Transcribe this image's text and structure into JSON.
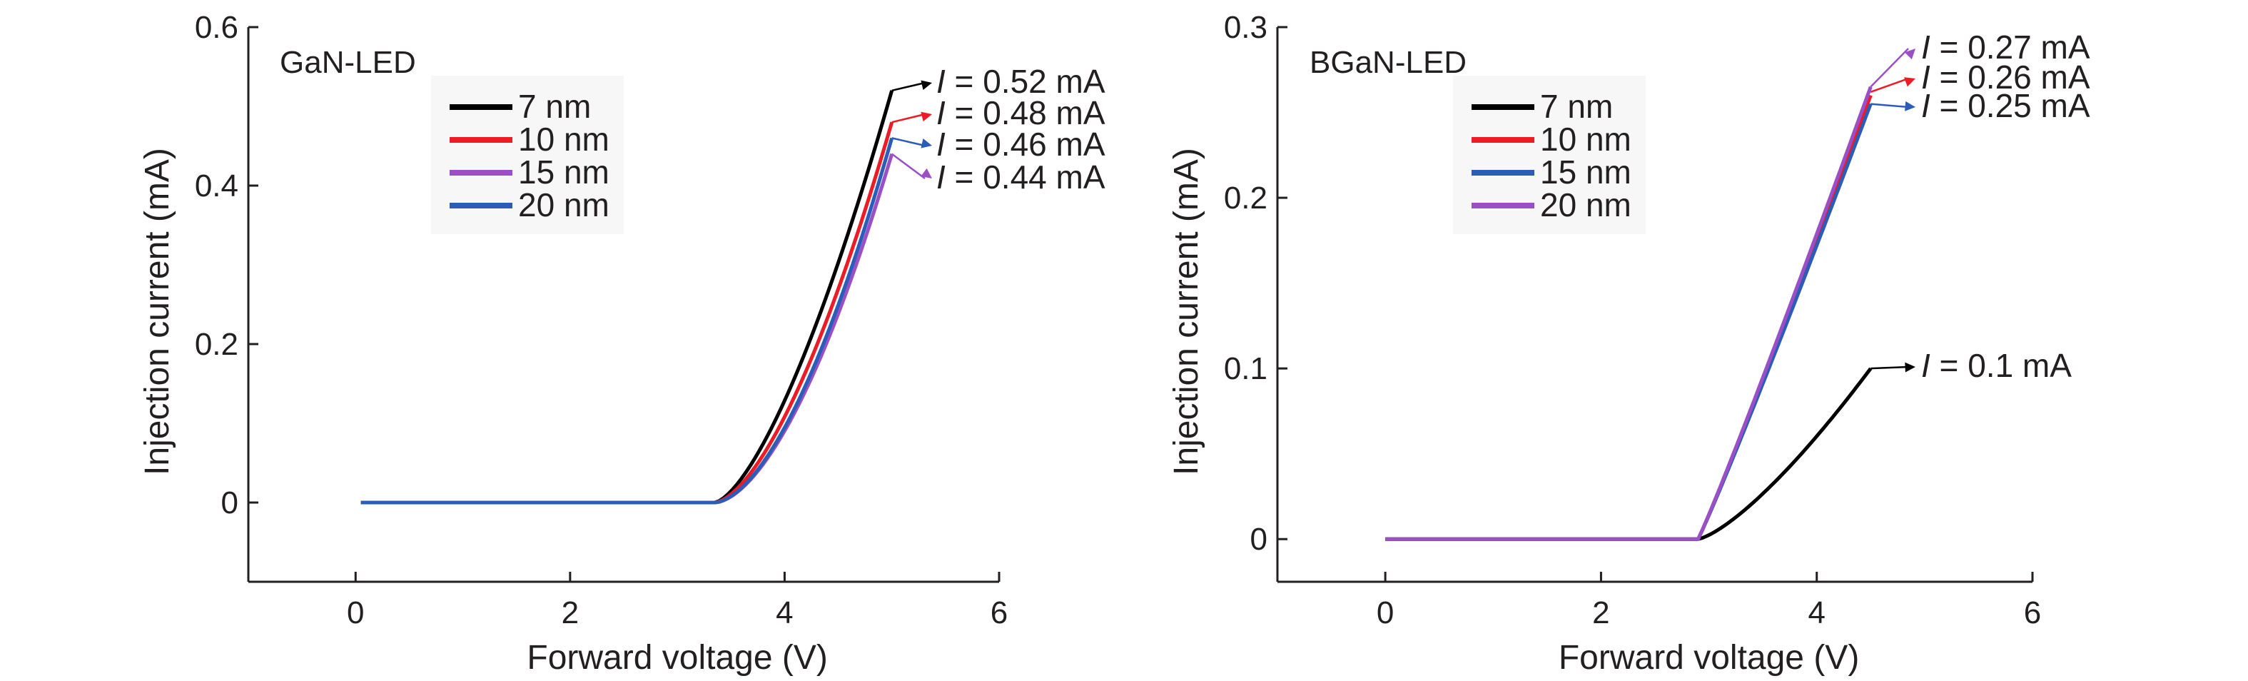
{
  "chart_data": [
    {
      "type": "line",
      "panel_label": "GaN-LED",
      "xlabel": "Forward voltage (V)",
      "ylabel": "Injection current (mA)",
      "xlim": [
        -1,
        6
      ],
      "ylim": [
        -0.1,
        0.6
      ],
      "xticks": [
        0,
        2,
        4,
        6
      ],
      "xtick_labels": [
        "0",
        "2",
        "4",
        "6"
      ],
      "yticks": [
        0,
        0.2,
        0.4,
        0.6
      ],
      "ytick_labels": [
        "0",
        "0.2",
        "0.4",
        "0.6"
      ],
      "grid": false,
      "legend_position": "upper-left",
      "series": [
        {
          "name": "7 nm",
          "color": "#000000",
          "threshold": 3.35,
          "end_x": 5.0,
          "end_y": 0.52,
          "shape": 1.5
        },
        {
          "name": "10 nm",
          "color": "#ed1c24",
          "threshold": 3.35,
          "end_x": 5.0,
          "end_y": 0.48,
          "shape": 1.6
        },
        {
          "name": "15 nm",
          "color": "#9b4fc6",
          "threshold": 3.35,
          "end_x": 5.0,
          "end_y": 0.44,
          "shape": 1.7
        },
        {
          "name": "20 nm",
          "color": "#2b5cb8",
          "threshold": 3.35,
          "end_x": 5.0,
          "end_y": 0.46,
          "shape": 1.7
        }
      ],
      "start_x": 0.05,
      "annotations": [
        {
          "var": "I",
          "text": " = 0.52 mA",
          "color": "#000000",
          "x": 5.0,
          "y": 0.52
        },
        {
          "var": "I",
          "text": " = 0.48 mA",
          "color": "#ed1c24",
          "x": 5.0,
          "y": 0.48
        },
        {
          "var": "I",
          "text": " = 0.46 mA",
          "color": "#2b5cb8",
          "x": 5.0,
          "y": 0.46
        },
        {
          "var": "I",
          "text": " = 0.44 mA",
          "color": "#9b4fc6",
          "x": 5.0,
          "y": 0.44
        }
      ]
    },
    {
      "type": "line",
      "panel_label": "BGaN-LED",
      "xlabel": "Forward voltage (V)",
      "ylabel": "Injection current (mA)",
      "xlim": [
        -1,
        6
      ],
      "ylim": [
        -0.025,
        0.3
      ],
      "xticks": [
        0,
        2,
        4,
        6
      ],
      "xtick_labels": [
        "0",
        "2",
        "4",
        "6"
      ],
      "yticks": [
        0,
        0.1,
        0.2,
        0.3
      ],
      "ytick_labels": [
        "0",
        "0.1",
        "0.2",
        "0.3"
      ],
      "grid": false,
      "legend_position": "upper-left",
      "series": [
        {
          "name": "7 nm",
          "color": "#000000",
          "threshold": 2.9,
          "end_x": 4.5,
          "end_y": 0.1,
          "shape": 1.35
        },
        {
          "name": "10 nm",
          "color": "#ed1c24",
          "threshold": 2.9,
          "end_x": 4.5,
          "end_y": 0.26,
          "shape": 1.05
        },
        {
          "name": "15 nm",
          "color": "#2b5cb8",
          "threshold": 2.9,
          "end_x": 4.5,
          "end_y": 0.255,
          "shape": 1.05
        },
        {
          "name": "20 nm",
          "color": "#9b4fc6",
          "threshold": 2.9,
          "end_x": 4.5,
          "end_y": 0.265,
          "shape": 1.05
        }
      ],
      "start_x": 0.0,
      "annotations": [
        {
          "var": "I",
          "text": " = 0.27 mA",
          "color": "#9b4fc6",
          "x": 4.5,
          "y": 0.265
        },
        {
          "var": "I",
          "text": " = 0.26 mA",
          "color": "#ed1c24",
          "x": 4.5,
          "y": 0.262
        },
        {
          "var": "I",
          "text": " = 0.25 mA",
          "color": "#2b5cb8",
          "x": 4.5,
          "y": 0.255
        },
        {
          "var": "I",
          "text": " = 0.1 mA",
          "color": "#000000",
          "x": 4.5,
          "y": 0.1
        }
      ]
    }
  ]
}
